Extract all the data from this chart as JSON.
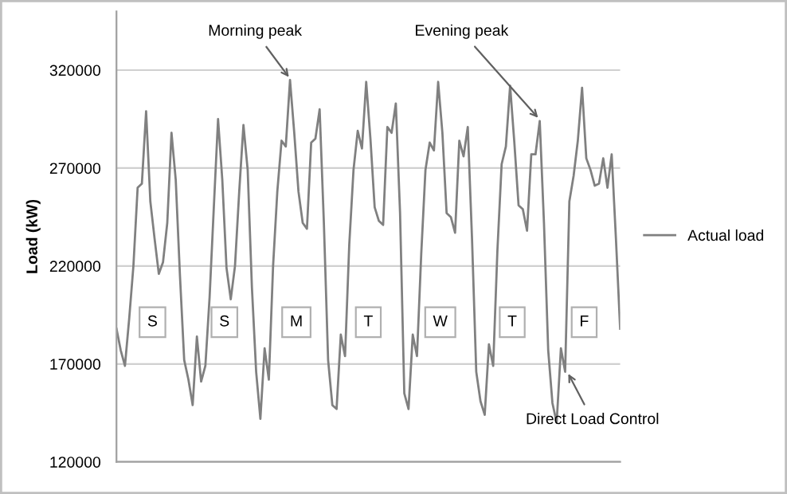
{
  "chart_data": {
    "type": "line",
    "ylabel": "Load (kW)",
    "categories": [
      null,
      null,
      null,
      null,
      null,
      null,
      null,
      null,
      null,
      null,
      null,
      null,
      null,
      null,
      null,
      null,
      null,
      null,
      null,
      null,
      null,
      null,
      null,
      null,
      null,
      null,
      null,
      null,
      null,
      null,
      null,
      null,
      null,
      null,
      null,
      null,
      null,
      null,
      null,
      null,
      null,
      null,
      null,
      null,
      null,
      null,
      null,
      null,
      null,
      null,
      null,
      null,
      null,
      null,
      null,
      null,
      null,
      null,
      null,
      null,
      null,
      null,
      null,
      null,
      null,
      null,
      null,
      null,
      null,
      null,
      null,
      null,
      null,
      null,
      null,
      null,
      null,
      null,
      null,
      null,
      null,
      null,
      null,
      null,
      null,
      null,
      null,
      null,
      null,
      null,
      null,
      null,
      null,
      null,
      null,
      null,
      null,
      null,
      null,
      null,
      null,
      null,
      null,
      null,
      null,
      null,
      null,
      null,
      null,
      null,
      null,
      null,
      null,
      null,
      null,
      null,
      null,
      null,
      null,
      null
    ],
    "series": [
      {
        "name": "Actual load",
        "color": "#808080",
        "values": [
          188000,
          177000,
          169000,
          193000,
          220000,
          260000,
          262000,
          299000,
          253000,
          234000,
          216000,
          222000,
          242000,
          288000,
          264000,
          215000,
          172000,
          162000,
          149000,
          184000,
          161000,
          169000,
          204000,
          250000,
          295000,
          264000,
          219000,
          203000,
          220000,
          258000,
          292000,
          269000,
          209000,
          166000,
          142000,
          178000,
          162000,
          220000,
          258000,
          284000,
          281000,
          315000,
          288000,
          258000,
          242000,
          239000,
          283000,
          285000,
          300000,
          242000,
          172000,
          149000,
          147000,
          185000,
          174000,
          231000,
          269000,
          289000,
          280000,
          314000,
          285000,
          250000,
          243000,
          241000,
          291000,
          288000,
          303000,
          247000,
          155000,
          147000,
          185000,
          174000,
          226000,
          269000,
          283000,
          279000,
          314000,
          288000,
          247000,
          245000,
          237000,
          284000,
          276000,
          291000,
          234000,
          166000,
          151000,
          144000,
          180000,
          169000,
          228000,
          272000,
          281000,
          312000,
          283000,
          251000,
          249000,
          238000,
          277000,
          277000,
          294000,
          242000,
          177000,
          150000,
          140000,
          178000,
          166000,
          253000,
          266000,
          284000,
          311000,
          275000,
          269000,
          261000,
          262000,
          275000,
          260000,
          277000,
          234000,
          188000
        ]
      }
    ],
    "ylim": [
      120000,
      350000
    ],
    "yticks": [
      120000,
      170000,
      220000,
      270000,
      320000
    ],
    "tick_labels": "y",
    "grid": "y",
    "legend": "right",
    "annotations": [
      "Morning peak",
      "Evening peak",
      "Direct Load Control",
      "S",
      "S",
      "M",
      "T",
      "W",
      "T",
      "F"
    ]
  }
}
